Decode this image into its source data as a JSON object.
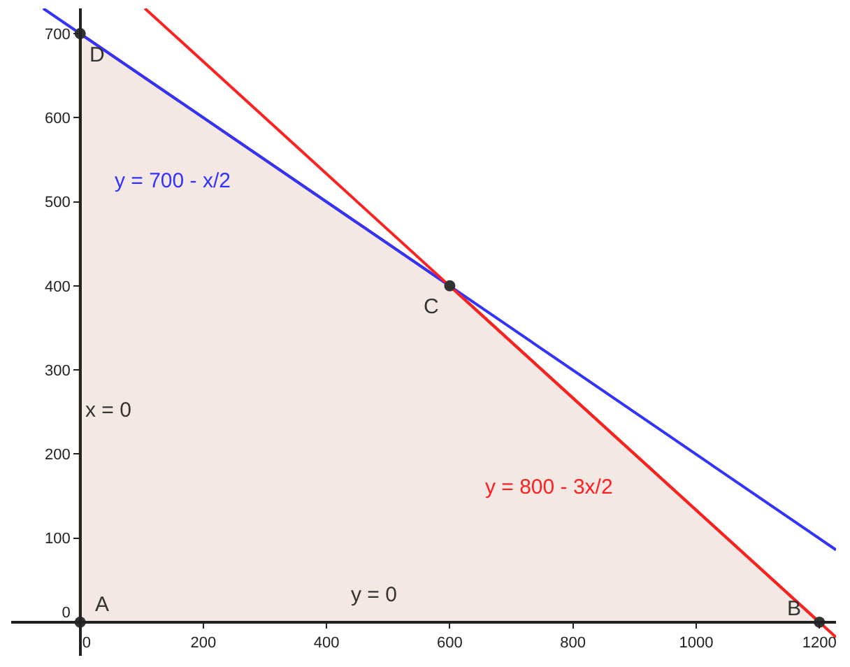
{
  "chart_data": {
    "type": "line",
    "series": [
      {
        "type": "area",
        "color": "#a0401e",
        "x": [
          0,
          1200,
          600,
          0,
          0
        ],
        "values": [
          0,
          0,
          400,
          700,
          0
        ]
      },
      {
        "name": "y = 700 - x/2",
        "color": "#3333ff",
        "x": [
          -60,
          150,
          1227
        ],
        "values": [
          730,
          625,
          86
        ]
      },
      {
        "name": "y = 800 - 3x/2",
        "color": "#ff2020",
        "x": [
          105,
          760,
          1227
        ],
        "values": [
          730,
          293,
          -18
        ]
      },
      {
        "type": "scatter",
        "marker": "circle",
        "color": "#333333",
        "x": [
          0,
          1200,
          600,
          0
        ],
        "values": [
          0,
          0,
          400,
          700
        ]
      }
    ],
    "xlim": [
      -112,
      1227
    ],
    "ylim": [
      -40,
      730
    ],
    "xticks": [
      0,
      200,
      400,
      600,
      800,
      1000,
      1200
    ],
    "yticks": [
      0,
      100,
      200,
      300,
      400,
      500,
      600,
      700
    ],
    "legend": false,
    "annotations": [
      {
        "text": "A",
        "x": 0,
        "y": 0
      },
      {
        "text": "B",
        "x": 1200,
        "y": 0
      },
      {
        "text": "C",
        "x": 600,
        "y": 400
      },
      {
        "text": "D",
        "x": 0,
        "y": 700
      },
      {
        "text": "x = 0",
        "x": 0,
        "y": 250
      },
      {
        "text": "y = 0",
        "x": 480,
        "y": 0
      }
    ]
  }
}
